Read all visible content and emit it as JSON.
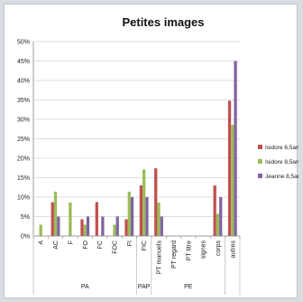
{
  "chart_data": {
    "type": "bar",
    "title": "Petites images",
    "categories": [
      "A",
      "AC",
      "F",
      "FO",
      "FC",
      "FOC",
      "FI",
      "FIC",
      "PT manuels",
      "PT regard",
      "PT titre",
      "signes",
      "corps",
      "autres"
    ],
    "groups": [
      {
        "label": "PA",
        "from": 0,
        "to": 7
      },
      {
        "label": "PAP",
        "from": 7,
        "to": 8
      },
      {
        "label": "PE",
        "from": 8,
        "to": 13
      }
    ],
    "series": [
      {
        "name": "Isidore 6,5ans",
        "color": "#c0504d",
        "values": [
          0,
          8.7,
          0,
          4.3,
          8.7,
          0,
          4.3,
          13.0,
          17.4,
          0,
          0,
          0,
          13.0,
          34.8
        ]
      },
      {
        "name": "Isidore 8,5ans",
        "color": "#9bbb59",
        "values": [
          2.9,
          11.4,
          8.6,
          2.9,
          0,
          2.9,
          11.4,
          17.1,
          8.6,
          0,
          0,
          0,
          5.7,
          28.6
        ]
      },
      {
        "name": "Jeanne 8,5ans",
        "color": "#8064a2",
        "values": [
          0,
          5.0,
          0,
          5.0,
          5.0,
          5.0,
          10.0,
          10.0,
          5.0,
          0,
          0,
          0,
          10.0,
          45.0
        ]
      }
    ],
    "ylim": [
      0,
      50
    ],
    "yticks": [
      "0%",
      "5%",
      "10%",
      "15%",
      "20%",
      "25%",
      "30%",
      "35%",
      "40%",
      "45%",
      "50%"
    ],
    "legend_position": "right"
  }
}
